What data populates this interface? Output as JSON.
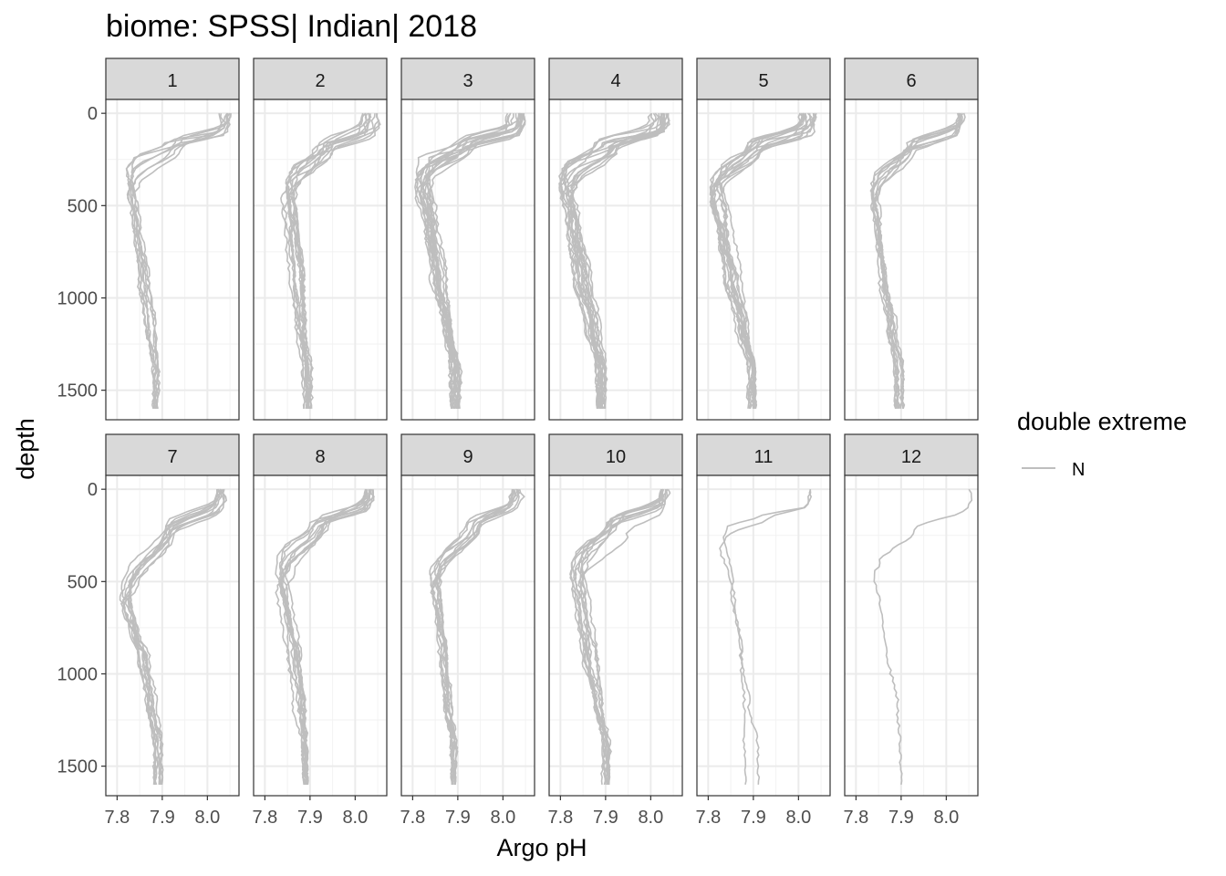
{
  "chart_data": {
    "type": "line",
    "title": "biome: SPSS| Indian| 2018",
    "xlabel": "Argo pH",
    "ylabel": "depth",
    "xlim": [
      7.775,
      8.07
    ],
    "ylim": [
      1660,
      -75
    ],
    "y_reversed": true,
    "grid": true,
    "x_ticks": [
      7.8,
      7.9,
      8.0
    ],
    "x_tick_labels": [
      "7.8",
      "7.9",
      "8.0"
    ],
    "y_ticks": [
      0,
      500,
      1000,
      1500
    ],
    "y_tick_labels": [
      "0",
      "500",
      "1000",
      "1500"
    ],
    "line_color": "#bebebe",
    "legend": {
      "title": "double extreme",
      "entries": [
        "N"
      ],
      "position": "right"
    },
    "facets": [
      {
        "label": "1",
        "n_profiles": 8,
        "surface": 8.04,
        "surface_spread": 0.02,
        "min_ph": 7.83,
        "min_depth": 380,
        "deep": 7.885,
        "deep_spread": 0.01,
        "spread": 0.012
      },
      {
        "label": "2",
        "n_profiles": 12,
        "surface": 8.03,
        "surface_spread": 0.02,
        "min_ph": 7.85,
        "min_depth": 430,
        "deep": 7.895,
        "deep_spread": 0.01,
        "spread": 0.014
      },
      {
        "label": "3",
        "n_profiles": 16,
        "surface": 8.03,
        "surface_spread": 0.02,
        "min_ph": 7.82,
        "min_depth": 380,
        "deep": 7.895,
        "deep_spread": 0.01,
        "spread": 0.015
      },
      {
        "label": "4",
        "n_profiles": 16,
        "surface": 8.02,
        "surface_spread": 0.02,
        "min_ph": 7.81,
        "min_depth": 400,
        "deep": 7.89,
        "deep_spread": 0.01,
        "spread": 0.015
      },
      {
        "label": "5",
        "n_profiles": 14,
        "surface": 8.02,
        "surface_spread": 0.02,
        "min_ph": 7.82,
        "min_depth": 420,
        "deep": 7.895,
        "deep_spread": 0.01,
        "spread": 0.015
      },
      {
        "label": "6",
        "n_profiles": 10,
        "surface": 8.03,
        "surface_spread": 0.01,
        "min_ph": 7.84,
        "min_depth": 430,
        "deep": 7.895,
        "deep_spread": 0.01,
        "spread": 0.012
      },
      {
        "label": "7",
        "n_profiles": 10,
        "surface": 8.03,
        "surface_spread": 0.01,
        "min_ph": 7.82,
        "min_depth": 550,
        "deep": 7.89,
        "deep_spread": 0.01,
        "spread": 0.012
      },
      {
        "label": "8",
        "n_profiles": 11,
        "surface": 8.03,
        "surface_spread": 0.01,
        "min_ph": 7.835,
        "min_depth": 480,
        "deep": 7.89,
        "deep_spread": 0.005,
        "spread": 0.012
      },
      {
        "label": "9",
        "n_profiles": 10,
        "surface": 8.03,
        "surface_spread": 0.01,
        "min_ph": 7.845,
        "min_depth": 480,
        "deep": 7.89,
        "deep_spread": 0.005,
        "spread": 0.012
      },
      {
        "label": "10",
        "n_profiles": 11,
        "surface": 8.03,
        "surface_spread": 0.01,
        "min_ph": 7.835,
        "min_depth": 480,
        "deep": 7.9,
        "deep_spread": 0.01,
        "spread": 0.012
      },
      {
        "label": "11",
        "n_profiles": 2,
        "surface": 8.03,
        "surface_spread": 0.01,
        "min_ph": 7.83,
        "min_depth": 340,
        "deep": 7.9,
        "deep_spread": 0.02,
        "spread": 0.01
      },
      {
        "label": "12",
        "n_profiles": 1,
        "surface": 8.05,
        "surface_spread": 0.0,
        "min_ph": 7.84,
        "min_depth": 520,
        "deep": 7.9,
        "deep_spread": 0.0,
        "spread": 0.0
      }
    ]
  }
}
